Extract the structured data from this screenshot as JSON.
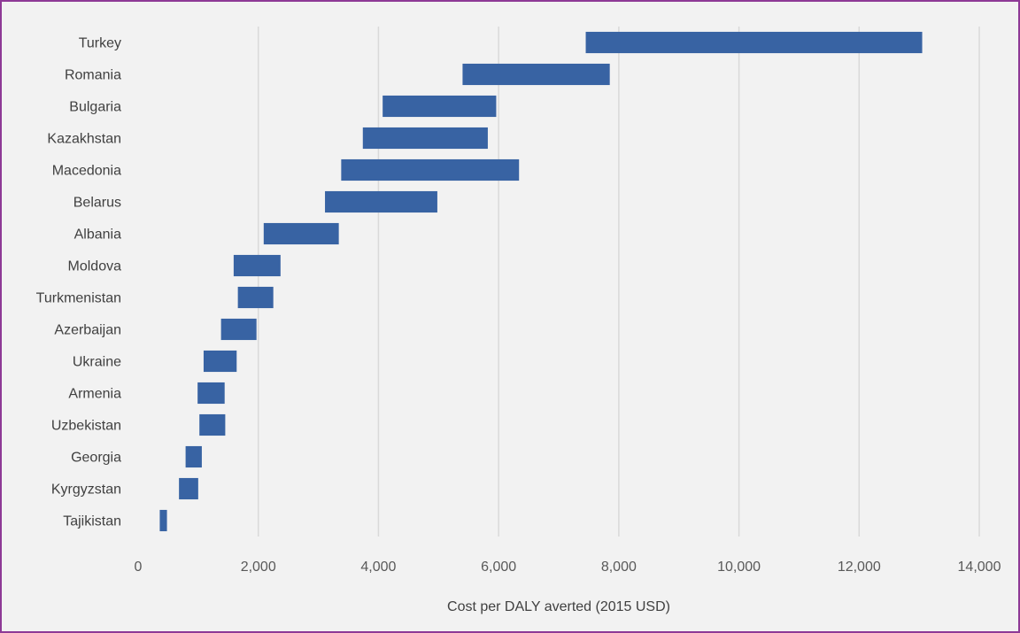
{
  "chart_data": {
    "type": "bar",
    "orientation": "horizontal",
    "subtype": "floating-range",
    "categories": [
      "Turkey",
      "Romania",
      "Bulgaria",
      "Kazakhstan",
      "Macedonia",
      "Belarus",
      "Albania",
      "Moldova",
      "Turkmenistan",
      "Azerbaijan",
      "Ukraine",
      "Armenia",
      "Uzbekistan",
      "Georgia",
      "Kyrgyzstan",
      "Tajikistan"
    ],
    "series": [
      {
        "ranges": [
          [
            7450,
            13050
          ],
          [
            5400,
            7850
          ],
          [
            4070,
            5960
          ],
          [
            3740,
            5820
          ],
          [
            3380,
            6340
          ],
          [
            3110,
            4980
          ],
          [
            2090,
            3340
          ],
          [
            1590,
            2370
          ],
          [
            1660,
            2250
          ],
          [
            1380,
            1970
          ],
          [
            1090,
            1640
          ],
          [
            990,
            1440
          ],
          [
            1020,
            1450
          ],
          [
            790,
            1060
          ],
          [
            680,
            1000
          ],
          [
            360,
            480
          ]
        ]
      }
    ],
    "xlabel": "Cost per DALY averted (2015 USD)",
    "xlim": [
      0,
      14000
    ],
    "xticks": [
      0,
      2000,
      4000,
      6000,
      8000,
      10000,
      12000,
      14000
    ],
    "xtick_labels": [
      "0",
      "2,000",
      "4,000",
      "6,000",
      "8,000",
      "10,000",
      "12,000",
      "14,000"
    ],
    "grid": "vertical",
    "legend": "none",
    "bar_color": "#3863a3",
    "grid_color": "#d9d9d9",
    "frame_color": "#8e3a96"
  }
}
